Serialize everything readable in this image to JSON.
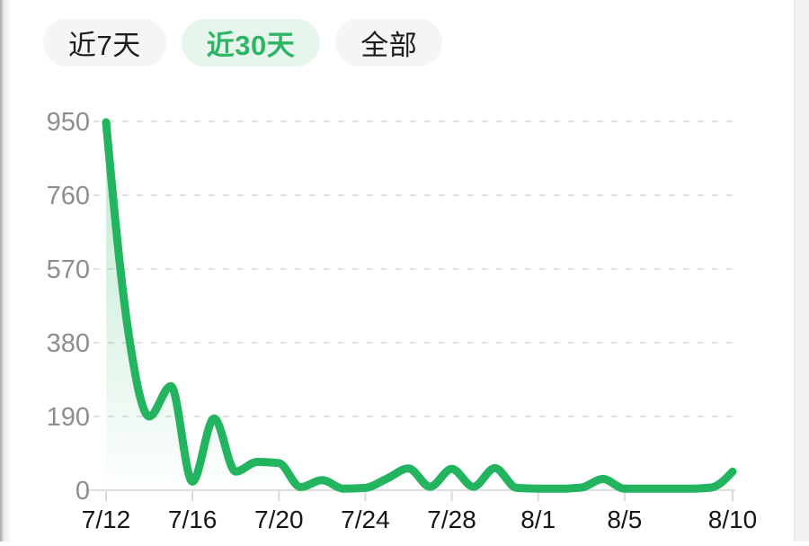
{
  "tabs": [
    {
      "label": "近7天",
      "selected": false
    },
    {
      "label": "近30天",
      "selected": true
    },
    {
      "label": "全部",
      "selected": false
    }
  ],
  "colors": {
    "accent_green": "#22b45e",
    "selected_tab_bg": "#e7f6ec",
    "selected_tab_text": "#2fb365",
    "tab_bg": "#f5f5f6",
    "tab_text": "#1c1c1c",
    "y_label_gray": "#8d8d8d",
    "x_label_dark": "#161616",
    "grid_gray": "#e2e2e2",
    "axis_line_gray": "#dedede",
    "tick_gray": "#d9d9d9"
  },
  "chart_data": {
    "type": "area",
    "title": "",
    "xlabel": "",
    "ylabel": "",
    "legend": "none",
    "grid": "dashed horizontal gridlines",
    "smooth": true,
    "x": [
      "7/12",
      "7/13",
      "7/14",
      "7/15",
      "7/16",
      "7/17",
      "7/18",
      "7/19",
      "7/20",
      "7/21",
      "7/22",
      "7/23",
      "7/24",
      "7/25",
      "7/26",
      "7/27",
      "7/28",
      "7/29",
      "7/30",
      "7/31",
      "8/1",
      "8/2",
      "8/3",
      "8/4",
      "8/5",
      "8/6",
      "8/7",
      "8/8",
      "8/9",
      "8/10"
    ],
    "values": [
      948,
      420,
      190,
      268,
      22,
      185,
      48,
      73,
      70,
      8,
      26,
      4,
      6,
      30,
      56,
      9,
      55,
      9,
      57,
      6,
      4,
      4,
      7,
      29,
      4,
      4,
      4,
      4,
      7,
      48
    ],
    "x_tick_labels": [
      "7/12",
      "7/16",
      "7/20",
      "7/24",
      "7/28",
      "8/1",
      "8/5",
      "8/10"
    ],
    "x_tick_indices": [
      0,
      4,
      8,
      12,
      16,
      20,
      24,
      29
    ],
    "y_ticks": [
      0,
      190,
      380,
      570,
      760,
      950
    ],
    "ylim": [
      0,
      950
    ],
    "line_color": "#22b45e",
    "fill": "vertical green gradient fading to transparent"
  }
}
